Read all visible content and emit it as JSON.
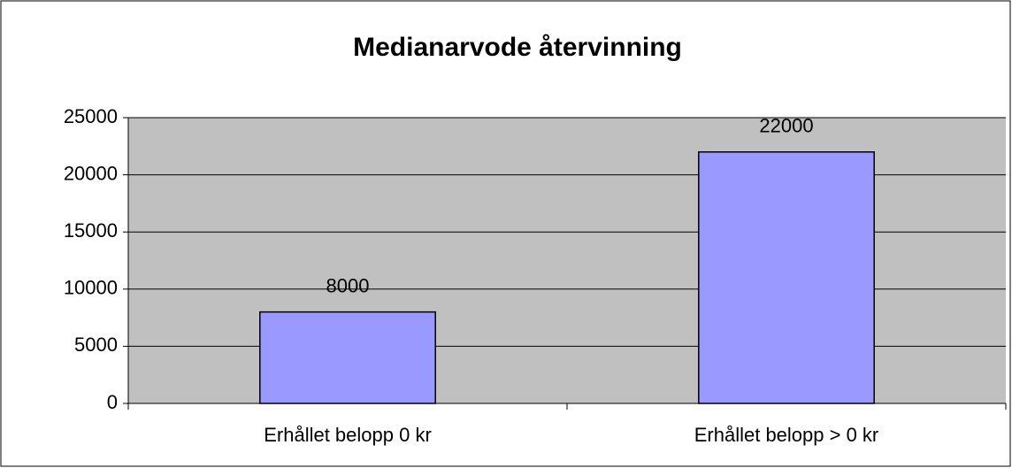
{
  "chart_data": {
    "type": "bar",
    "title": "Medianarvode återvinning",
    "categories": [
      "Erhållet belopp 0 kr",
      "Erhållet belopp > 0 kr"
    ],
    "values": [
      8000,
      22000
    ],
    "color": "#9999ff",
    "ylim": [
      0,
      25000
    ],
    "yticks": [
      0,
      5000,
      10000,
      15000,
      20000,
      25000
    ],
    "grid": true
  }
}
